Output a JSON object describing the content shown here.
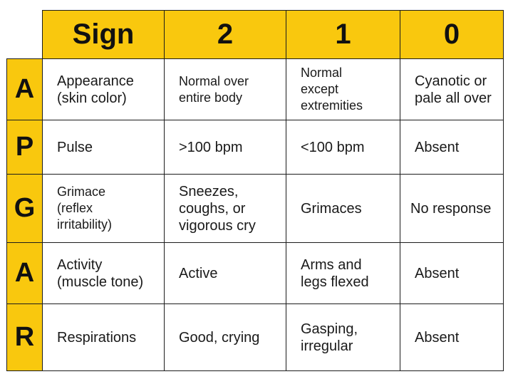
{
  "header": {
    "sign": "Sign",
    "score_2": "2",
    "score_1": "1",
    "score_0": "0"
  },
  "rows": [
    {
      "letter": "A",
      "sign": "Appearance\n(skin color)",
      "score_2": "Normal over\nentire body",
      "score_1": "Normal\nexcept\nextremities",
      "score_0": "Cyanotic or\npale all over"
    },
    {
      "letter": "P",
      "sign": "Pulse",
      "score_2": ">100 bpm",
      "score_1": "<100 bpm",
      "score_0": "Absent"
    },
    {
      "letter": "G",
      "sign": "Grimace\n(reflex\nirritability)",
      "score_2": "Sneezes,\ncoughs, or\nvigorous cry",
      "score_1": "Grimaces",
      "score_0": "No response"
    },
    {
      "letter": "A",
      "sign": "Activity\n(muscle tone)",
      "score_2": "Active",
      "score_1": "Arms and\nlegs flexed",
      "score_0": "Absent"
    },
    {
      "letter": "R",
      "sign": "Respirations",
      "score_2": "Good, crying",
      "score_1": "Gasping,\nirregular",
      "score_0": "Absent"
    }
  ],
  "colors": {
    "header_background": "#f9c80e",
    "border": "#1c1c1c",
    "text": "#1a1a1a"
  }
}
